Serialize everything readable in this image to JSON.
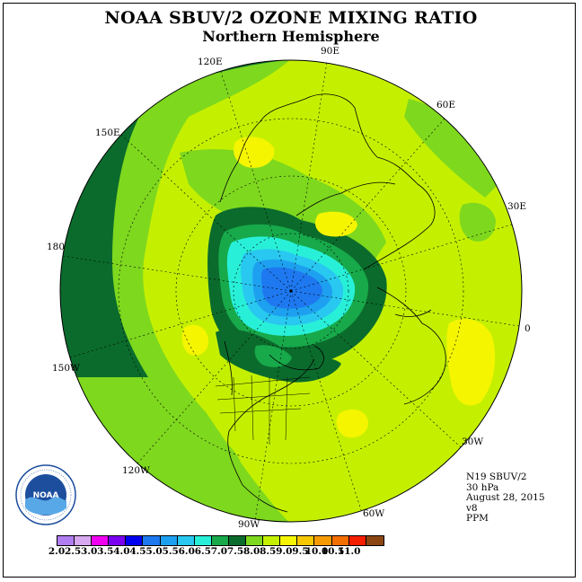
{
  "header": {
    "title": "NOAA SBUV/2 OZONE MIXING RATIO",
    "subtitle": "Northern Hemisphere"
  },
  "longitude_labels": [
    "90E",
    "60E",
    "30E",
    "0",
    "30W",
    "60W",
    "90W",
    "120W",
    "150W",
    "180",
    "150E",
    "120E"
  ],
  "info": {
    "satellite": "N19 SBUV/2",
    "level": "30 hPa",
    "date": "August 28, 2015",
    "version": "v8",
    "units": "PPM"
  },
  "colorbar": {
    "labels": [
      "2.0",
      "2.5",
      "3.0",
      "3.5",
      "4.0",
      "4.5",
      "5.0",
      "5.5",
      "6.0",
      "6.5",
      "7.0",
      "7.5",
      "8.0",
      "8.5",
      "9.0",
      "9.5",
      "10.0",
      "10.5",
      "11.0"
    ],
    "colors": [
      "#b07ef0",
      "#d8a8f0",
      "#f200f2",
      "#7a00f2",
      "#0000f0",
      "#1e78f0",
      "#1ea0f0",
      "#28c8f0",
      "#28f0d8",
      "#17a94a",
      "#0b6b2c",
      "#7ed81e",
      "#c4f000",
      "#f5f500",
      "#f5c800",
      "#f59a00",
      "#f56e00",
      "#f51e00",
      "#8b4513"
    ]
  },
  "logo": {
    "text": "NOAA",
    "icon": "noaa-logo-icon"
  }
}
